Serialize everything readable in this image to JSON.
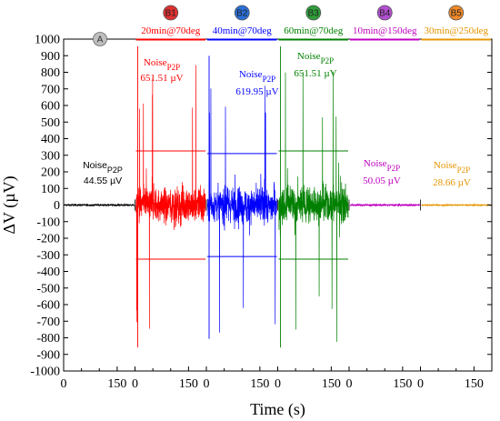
{
  "chart_data": {
    "type": "line",
    "xlabel": "Time (s)",
    "ylabel": "ΔV (µV)",
    "ylim": [
      -1000,
      1000
    ],
    "y_ticks": [
      1000,
      900,
      800,
      700,
      600,
      500,
      400,
      300,
      200,
      100,
      0,
      -100,
      -200,
      -300,
      -400,
      -500,
      -600,
      -700,
      -800,
      -900,
      -1000
    ],
    "x_tick_labels": [
      "0",
      "150",
      "0",
      "150",
      "0",
      "150",
      "0",
      "150",
      "0",
      "150",
      "0",
      "150"
    ],
    "grid": false,
    "segments": [
      {
        "badge": "A",
        "label": "",
        "color": "#000000",
        "noise_p2p_uV": 44.55,
        "noise_text": "44.55 µV",
        "amplitude_uV": 25
      },
      {
        "badge": "B1",
        "label": "20min@70deg",
        "color": "#ff0000",
        "noise_p2p_uV": 651.51,
        "noise_text": "651.51 µV",
        "amplitude_uV": 330
      },
      {
        "badge": "B2",
        "label": "40min@70deg",
        "color": "#0000ff",
        "noise_p2p_uV": 619.95,
        "noise_text": "619.95 µV",
        "amplitude_uV": 310
      },
      {
        "badge": "B3",
        "label": "60min@70deg",
        "color": "#008000",
        "noise_p2p_uV": 651.51,
        "noise_text": "651.51 µV",
        "amplitude_uV": 330
      },
      {
        "badge": "B4",
        "label": "10min@150deg",
        "color": "#bf00bf",
        "noise_p2p_uV": 50.05,
        "noise_text": "50.05 µV",
        "amplitude_uV": 25
      },
      {
        "badge": "B5",
        "label": "30min@250deg",
        "color": "#e69500",
        "noise_p2p_uV": 28.66,
        "noise_text": "28.66 µV",
        "amplitude_uV": 15
      }
    ],
    "noise_prefix": "Noise",
    "noise_subscript": "P2P"
  },
  "badge_colors": {
    "A": "#bfbfbf",
    "B1": "#e03030",
    "B2": "#2a6fd6",
    "B3": "#2e9e3a",
    "B4": "#b24fd0",
    "B5": "#f08a2a"
  }
}
